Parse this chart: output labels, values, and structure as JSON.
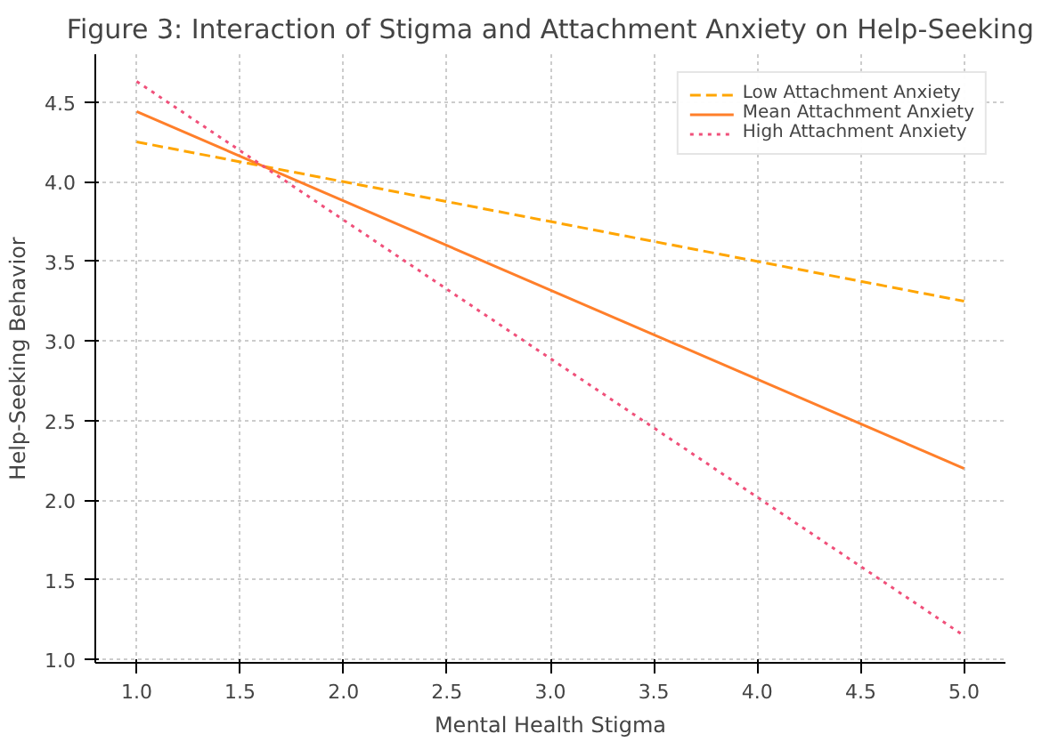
{
  "chart_data": {
    "type": "line",
    "title": "Figure 3: Interaction of Stigma and Attachment Anxiety on Help-Seeking",
    "xlabel": "Mental Health Stigma",
    "ylabel": "Help-Seeking Behavior",
    "x": [
      1.0,
      5.0
    ],
    "series": [
      {
        "name": "Low Attachment Anxiety",
        "color": "#ffa500",
        "values": [
          4.25,
          3.25
        ],
        "line_style": "dashed"
      },
      {
        "name": "Mean Attachment Anxiety",
        "color": "#ff7f2a",
        "values": [
          4.44,
          2.2
        ],
        "line_style": "solid"
      },
      {
        "name": "High Attachment Anxiety",
        "color": "#f0507a",
        "values": [
          4.63,
          1.15
        ],
        "line_style": "dotted"
      }
    ],
    "xlim": [
      0.8,
      5.2
    ],
    "ylim": [
      0.98,
      4.8
    ],
    "xticks": [
      {
        "value": 1,
        "label": "1.0"
      },
      {
        "value": 1.5,
        "label": "1.5"
      },
      {
        "value": 2,
        "label": "2.0"
      },
      {
        "value": 2.5,
        "label": "2.5"
      },
      {
        "value": 3,
        "label": "3.0"
      },
      {
        "value": 3.5,
        "label": "3.5"
      },
      {
        "value": 4,
        "label": "4.0"
      },
      {
        "value": 4.5,
        "label": "4.5"
      },
      {
        "value": 5,
        "label": "5.0"
      }
    ],
    "yticks": [
      {
        "value": 1,
        "label": "1.0"
      },
      {
        "value": 1.5,
        "label": "1.5"
      },
      {
        "value": 2,
        "label": "2.0"
      },
      {
        "value": 2.5,
        "label": "2.5"
      },
      {
        "value": 3,
        "label": "3.0"
      },
      {
        "value": 3.5,
        "label": "3.5"
      },
      {
        "value": 4,
        "label": "4.0"
      },
      {
        "value": 4.5,
        "label": "4.5"
      }
    ],
    "grid": true,
    "legend": "top right",
    "marker": "none"
  }
}
